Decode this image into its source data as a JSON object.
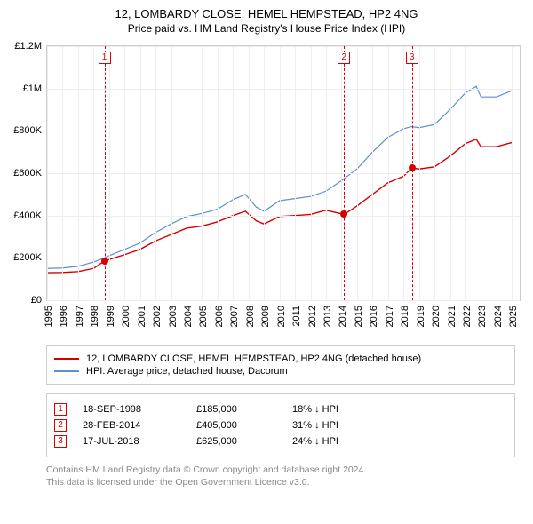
{
  "title": "12, LOMBARDY CLOSE, HEMEL HEMPSTEAD, HP2 4NG",
  "subtitle": "Price paid vs. HM Land Registry's House Price Index (HPI)",
  "chart": {
    "type": "line",
    "background_color": "#ffffff",
    "grid_color": "#eeeeee",
    "axis_color": "#cccccc",
    "x": {
      "min": 1995,
      "max": 2025.5,
      "ticks": [
        1995,
        1996,
        1997,
        1998,
        1999,
        2000,
        2001,
        2002,
        2003,
        2004,
        2005,
        2006,
        2007,
        2008,
        2009,
        2010,
        2011,
        2012,
        2013,
        2014,
        2015,
        2016,
        2017,
        2018,
        2019,
        2020,
        2021,
        2022,
        2023,
        2024,
        2025
      ],
      "label_fontsize": 11
    },
    "y": {
      "min": 0,
      "max": 1200000,
      "ticks": [
        0,
        200000,
        400000,
        600000,
        800000,
        1000000,
        1200000
      ],
      "tick_labels": [
        "£0",
        "£200K",
        "£400K",
        "£600K",
        "£800K",
        "£1M",
        "£1.2M"
      ],
      "label_fontsize": 11
    },
    "series": [
      {
        "name": "hpi",
        "label": "HPI: Average price, detached house, Dacorum",
        "color": "#5b8fd6",
        "line_width": 1.2,
        "points": [
          [
            1995,
            150000
          ],
          [
            1996,
            152000
          ],
          [
            1997,
            160000
          ],
          [
            1998,
            180000
          ],
          [
            1998.7,
            200000
          ],
          [
            1999,
            210000
          ],
          [
            2000,
            240000
          ],
          [
            2001,
            270000
          ],
          [
            2002,
            320000
          ],
          [
            2003,
            360000
          ],
          [
            2004,
            395000
          ],
          [
            2005,
            410000
          ],
          [
            2006,
            430000
          ],
          [
            2007,
            475000
          ],
          [
            2007.8,
            500000
          ],
          [
            2008.5,
            440000
          ],
          [
            2009,
            420000
          ],
          [
            2010,
            470000
          ],
          [
            2011,
            480000
          ],
          [
            2012,
            490000
          ],
          [
            2013,
            515000
          ],
          [
            2014,
            565000
          ],
          [
            2015,
            620000
          ],
          [
            2016,
            700000
          ],
          [
            2017,
            770000
          ],
          [
            2018,
            810000
          ],
          [
            2018.5,
            820000
          ],
          [
            2019,
            815000
          ],
          [
            2020,
            830000
          ],
          [
            2021,
            900000
          ],
          [
            2022,
            980000
          ],
          [
            2022.7,
            1010000
          ],
          [
            2023,
            960000
          ],
          [
            2024,
            960000
          ],
          [
            2025,
            990000
          ]
        ]
      },
      {
        "name": "property",
        "label": "12, LOMBARDY CLOSE, HEMEL HEMPSTEAD, HP2 4NG (detached house)",
        "color": "#d40000",
        "line_width": 1.4,
        "points": [
          [
            1995,
            130000
          ],
          [
            1996,
            131000
          ],
          [
            1997,
            135000
          ],
          [
            1998,
            150000
          ],
          [
            1998.7,
            185000
          ],
          [
            1999,
            192000
          ],
          [
            2000,
            215000
          ],
          [
            2001,
            240000
          ],
          [
            2002,
            280000
          ],
          [
            2003,
            310000
          ],
          [
            2004,
            340000
          ],
          [
            2005,
            350000
          ],
          [
            2006,
            370000
          ],
          [
            2007,
            400000
          ],
          [
            2007.8,
            420000
          ],
          [
            2008.5,
            375000
          ],
          [
            2009,
            360000
          ],
          [
            2010,
            395000
          ],
          [
            2011,
            400000
          ],
          [
            2012,
            405000
          ],
          [
            2013,
            425000
          ],
          [
            2014.16,
            405000
          ],
          [
            2014.17,
            405000
          ],
          [
            2015,
            445000
          ],
          [
            2016,
            500000
          ],
          [
            2017,
            555000
          ],
          [
            2018,
            585000
          ],
          [
            2018.54,
            625000
          ],
          [
            2018.55,
            625000
          ],
          [
            2019,
            620000
          ],
          [
            2020,
            630000
          ],
          [
            2021,
            680000
          ],
          [
            2022,
            740000
          ],
          [
            2022.7,
            760000
          ],
          [
            2023,
            725000
          ],
          [
            2024,
            725000
          ],
          [
            2025,
            745000
          ]
        ]
      }
    ],
    "event_lines": {
      "color": "#d40000",
      "dash": "3,3",
      "events": [
        {
          "id": "1",
          "x": 1998.7
        },
        {
          "id": "2",
          "x": 2014.16
        },
        {
          "id": "3",
          "x": 2018.54
        }
      ]
    },
    "sale_markers": {
      "color": "#d40000",
      "radius": 4,
      "points": [
        {
          "x": 1998.7,
          "y": 185000
        },
        {
          "x": 2014.16,
          "y": 405000
        },
        {
          "x": 2018.54,
          "y": 625000
        }
      ]
    }
  },
  "legend": {
    "items": [
      {
        "color": "#d40000",
        "label": "12, LOMBARDY CLOSE, HEMEL HEMPSTEAD, HP2 4NG (detached house)"
      },
      {
        "color": "#5b8fd6",
        "label": "HPI: Average price, detached house, Dacorum"
      }
    ]
  },
  "sales": [
    {
      "id": "1",
      "date": "18-SEP-1998",
      "price": "£185,000",
      "diff": "18% ↓ HPI"
    },
    {
      "id": "2",
      "date": "28-FEB-2014",
      "price": "£405,000",
      "diff": "31% ↓ HPI"
    },
    {
      "id": "3",
      "date": "17-JUL-2018",
      "price": "£625,000",
      "diff": "24% ↓ HPI"
    }
  ],
  "footnote": {
    "line1": "Contains HM Land Registry data © Crown copyright and database right 2024.",
    "line2": "This data is licensed under the Open Government Licence v3.0."
  }
}
